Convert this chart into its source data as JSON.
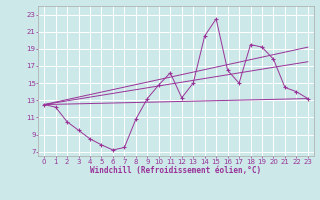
{
  "xlabel": "Windchill (Refroidissement éolien,°C)",
  "bg_color": "#cce8e8",
  "grid_color": "#ffffff",
  "line_color": "#993399",
  "spine_color": "#aaaaaa",
  "xlim": [
    -0.5,
    23.5
  ],
  "ylim": [
    6.5,
    24.0
  ],
  "xticks": [
    0,
    1,
    2,
    3,
    4,
    5,
    6,
    7,
    8,
    9,
    10,
    11,
    12,
    13,
    14,
    15,
    16,
    17,
    18,
    19,
    20,
    21,
    22,
    23
  ],
  "yticks": [
    7,
    9,
    11,
    13,
    15,
    17,
    19,
    21,
    23
  ],
  "main_line": {
    "x": [
      0,
      1,
      2,
      3,
      4,
      5,
      6,
      7,
      8,
      9,
      10,
      11,
      12,
      13,
      14,
      15,
      16,
      17,
      18,
      19,
      20,
      21,
      22,
      23
    ],
    "y": [
      12.5,
      12.2,
      10.5,
      9.5,
      8.5,
      7.8,
      7.2,
      7.5,
      10.8,
      13.2,
      14.8,
      16.2,
      13.3,
      15.0,
      20.5,
      22.5,
      16.5,
      15.0,
      19.5,
      19.2,
      17.8,
      14.5,
      14.0,
      13.2
    ]
  },
  "straight_lines": [
    {
      "x": [
        0,
        23
      ],
      "y": [
        12.5,
        13.2
      ]
    },
    {
      "x": [
        0,
        23
      ],
      "y": [
        12.5,
        19.2
      ]
    },
    {
      "x": [
        0,
        23
      ],
      "y": [
        12.5,
        17.5
      ]
    }
  ],
  "xlabel_fontsize": 5.5,
  "tick_fontsize": 5.0
}
